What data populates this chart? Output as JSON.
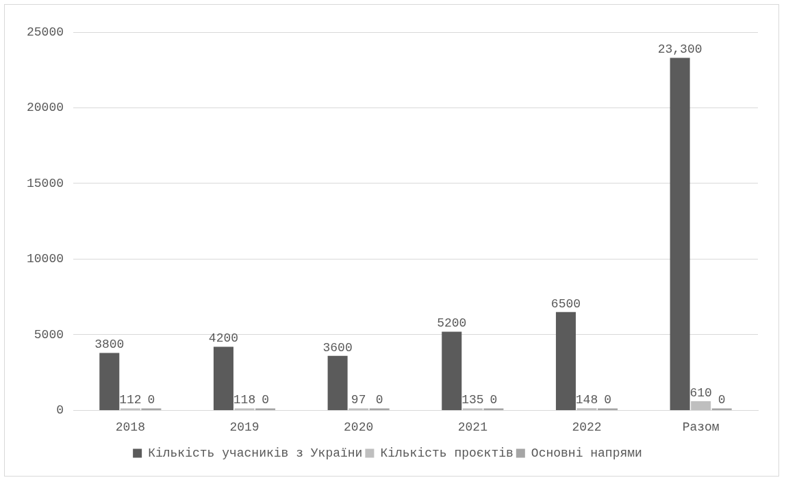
{
  "chart_data": {
    "type": "bar",
    "categories": [
      "2018",
      "2019",
      "2020",
      "2021",
      "2022",
      "Разом"
    ],
    "series": [
      {
        "name": "Кількість учасників з України",
        "color": "#5b5b5b",
        "values": [
          3800,
          4200,
          3600,
          5200,
          6500,
          23300
        ],
        "value_labels": [
          "3800",
          "4200",
          "3600",
          "5200",
          "6500",
          "23,300"
        ]
      },
      {
        "name": "Кількість проєктів",
        "color": "#bfbfbf",
        "values": [
          112,
          118,
          97,
          135,
          148,
          610
        ],
        "value_labels": [
          "112",
          "118",
          "97",
          "135",
          "148",
          "610"
        ]
      },
      {
        "name": "Основні напрями",
        "color": "#a5a5a5",
        "values": [
          0,
          0,
          0,
          0,
          0,
          0
        ],
        "value_labels": [
          "0",
          "0",
          "0",
          "0",
          "0",
          "0"
        ]
      }
    ],
    "ylim": [
      0,
      25000
    ],
    "yticks": [
      0,
      5000,
      10000,
      15000,
      20000,
      25000
    ],
    "grid": "y",
    "legend": "bottom"
  }
}
